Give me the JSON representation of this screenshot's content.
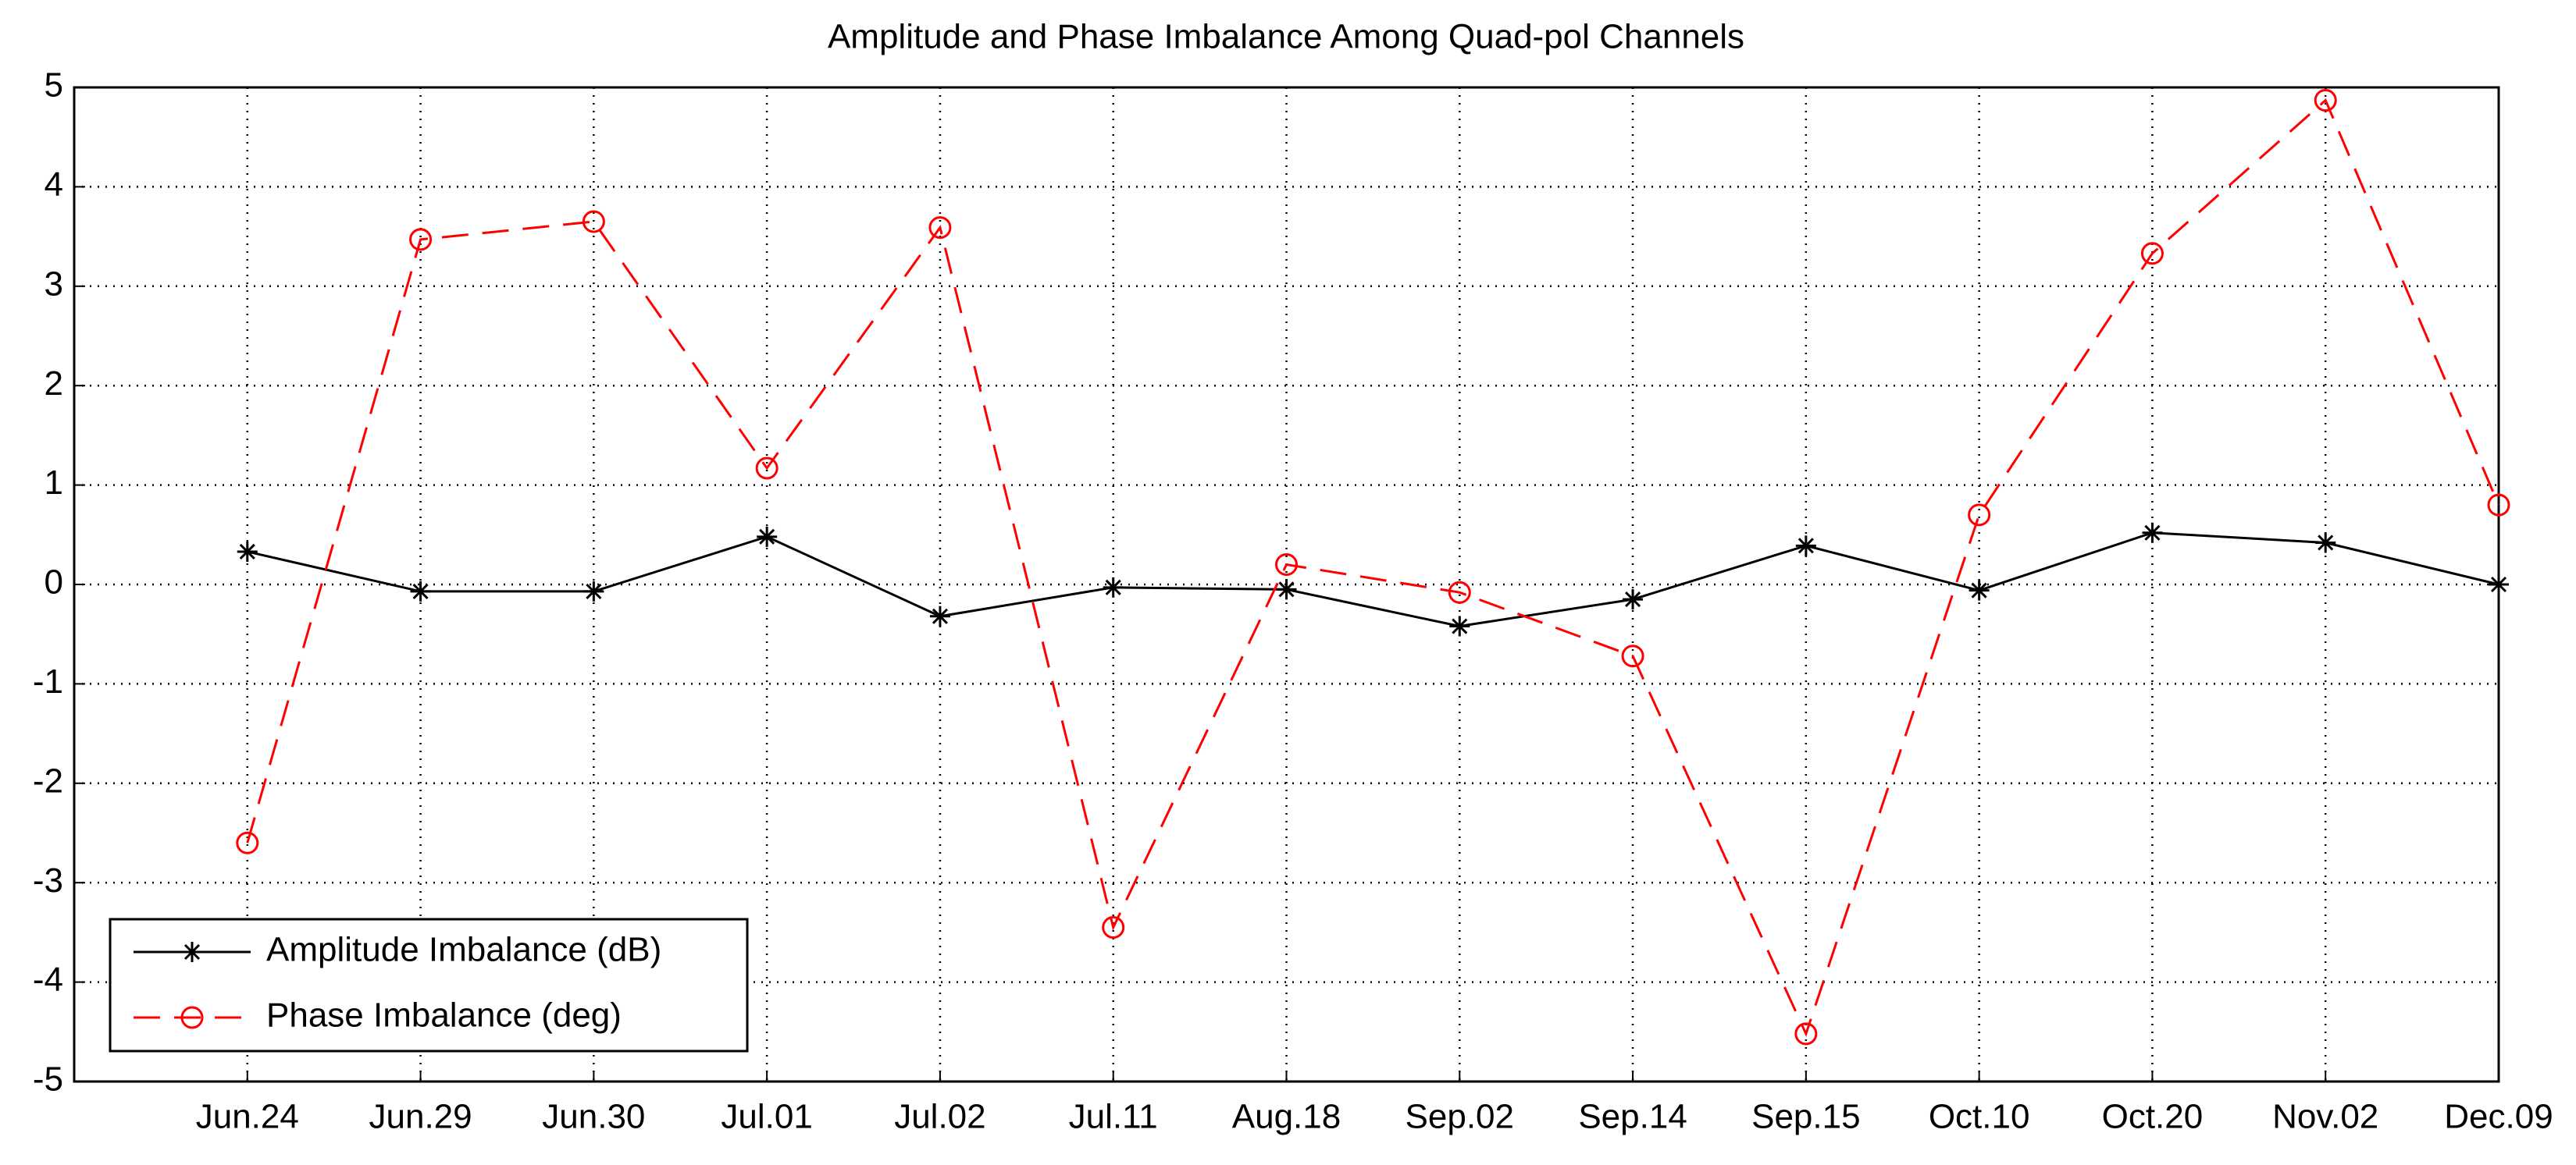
{
  "chart_data": {
    "type": "line",
    "title": "Amplitude and Phase Imbalance Among Quad-pol Channels",
    "categories": [
      "Jun.24",
      "Jun.29",
      "Jun.30",
      "Jul.01",
      "Jul.02",
      "Jul.11",
      "Aug.18",
      "Sep.02",
      "Sep.14",
      "Sep.15",
      "Oct.10",
      "Oct.20",
      "Nov.02",
      "Dec.09"
    ],
    "series": [
      {
        "name": "Amplitude Imbalance (dB)",
        "color": "#000000",
        "marker": "star",
        "dash": false,
        "values": [
          0.33,
          -0.07,
          -0.07,
          0.48,
          -0.32,
          -0.03,
          -0.05,
          -0.42,
          -0.15,
          0.39,
          -0.06,
          0.52,
          0.42,
          0.0
        ]
      },
      {
        "name": "Phase Imbalance (deg)",
        "color": "#ff0000",
        "marker": "circle",
        "dash": true,
        "values": [
          -2.6,
          3.47,
          3.65,
          1.17,
          3.59,
          -3.45,
          0.2,
          -0.08,
          -0.72,
          -4.52,
          0.7,
          3.33,
          4.87,
          0.8
        ]
      }
    ],
    "ylim": [
      -5,
      5
    ],
    "yticks": [
      -5,
      -4,
      -3,
      -2,
      -1,
      0,
      1,
      2,
      3,
      4,
      5
    ],
    "grid": true,
    "legend": "lower left"
  }
}
